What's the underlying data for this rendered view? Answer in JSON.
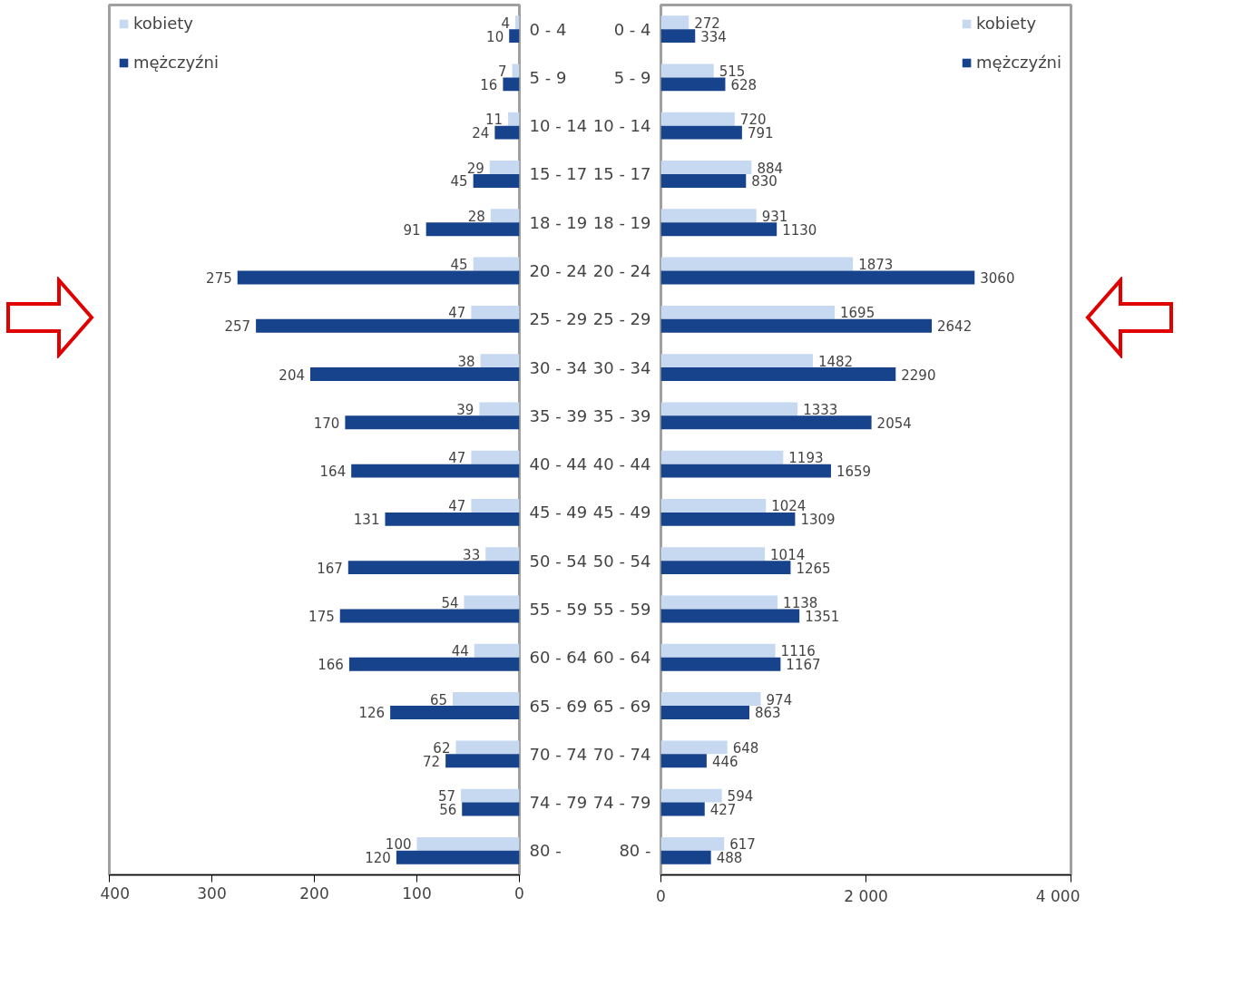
{
  "chart_data": [
    {
      "type": "bar",
      "orientation": "horizontal",
      "categories": [
        "0 - 4",
        "5 - 9",
        "10 - 14",
        "15 - 17",
        "18 - 19",
        "20 - 24",
        "25 - 29",
        "30 - 34",
        "35 - 39",
        "40 - 44",
        "45 - 49",
        "50 - 54",
        "55 - 59",
        "60 - 64",
        "65 - 69",
        "70 - 74",
        "74 - 79",
        "80 -"
      ],
      "series": [
        {
          "name": "kobiety",
          "color": "#c6d9f1",
          "values": [
            4,
            7,
            11,
            29,
            28,
            45,
            47,
            38,
            39,
            47,
            47,
            33,
            54,
            44,
            65,
            62,
            57,
            100
          ]
        },
        {
          "name": "mężczyźni",
          "color": "#17428c",
          "values": [
            10,
            16,
            24,
            45,
            91,
            275,
            257,
            204,
            170,
            164,
            131,
            167,
            175,
            166,
            126,
            72,
            56,
            120
          ]
        }
      ],
      "xlim": [
        400,
        0
      ],
      "xticks": [
        400,
        300,
        200,
        100,
        0
      ],
      "data_labels": true,
      "legend": "top left",
      "grid": false
    },
    {
      "type": "bar",
      "orientation": "horizontal",
      "categories": [
        "0 - 4",
        "5 - 9",
        "10 - 14",
        "15 - 17",
        "18 - 19",
        "20 - 24",
        "25 - 29",
        "30 - 34",
        "35 - 39",
        "40 - 44",
        "45 - 49",
        "50 - 54",
        "55 - 59",
        "60 - 64",
        "65 - 69",
        "70 - 74",
        "74 - 79",
        "80 -"
      ],
      "series": [
        {
          "name": "kobiety",
          "color": "#c6d9f1",
          "values": [
            272,
            515,
            720,
            884,
            931,
            1873,
            1695,
            1482,
            1333,
            1193,
            1024,
            1014,
            1138,
            1116,
            974,
            648,
            594,
            617
          ]
        },
        {
          "name": "mężczyźni",
          "color": "#17428c",
          "values": [
            334,
            628,
            791,
            830,
            1130,
            3060,
            2642,
            2290,
            2054,
            1659,
            1309,
            1265,
            1351,
            1167,
            863,
            446,
            427,
            488
          ]
        }
      ],
      "xlim": [
        0,
        4000
      ],
      "xticks": [
        0,
        {
          "value": 2000,
          "label": "2 000"
        },
        {
          "value": 4000,
          "label": "4 000"
        }
      ],
      "data_labels": true,
      "legend": "top right",
      "grid": false
    }
  ]
}
